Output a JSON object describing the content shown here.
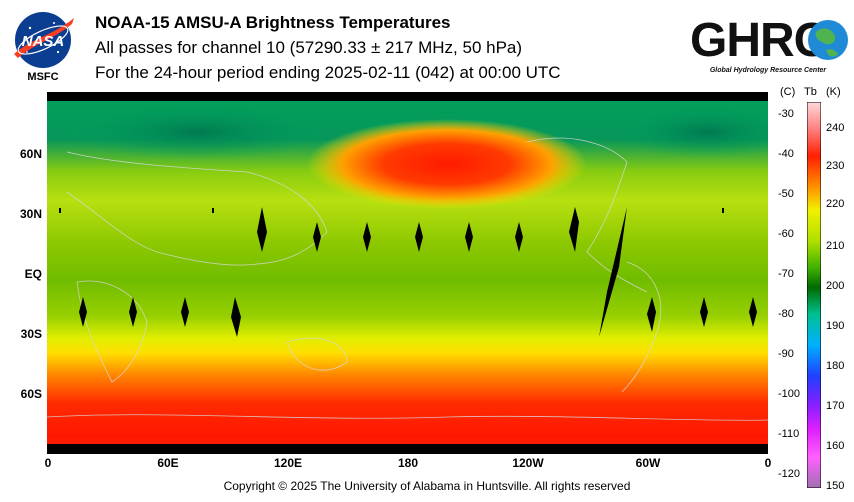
{
  "header": {
    "title": "NOAA-15 AMSU-A Brightness Temperatures",
    "subtitle": "All passes for channel 10 (57290.33 ± 217 MHz, 50 hPa)",
    "period": "For the 24-hour period ending 2025-02-11 (042) at 00:00 UTC"
  },
  "nasa_logo": {
    "text": "NASA",
    "caption": "MSFC"
  },
  "ghrc_logo": {
    "text": "GHRC",
    "caption": "Global Hydrology Resource Center"
  },
  "map": {
    "lat_labels": [
      "60N",
      "30N",
      "EQ",
      "30S",
      "60S"
    ],
    "lon_labels": [
      "0",
      "60E",
      "120E",
      "180",
      "120W",
      "60W",
      "0"
    ]
  },
  "colorbar": {
    "unit_c": "(C)",
    "unit_tb": "Tb",
    "unit_k": "(K)",
    "celsius_ticks": [
      "-30",
      "-40",
      "-50",
      "-60",
      "-70",
      "-80",
      "-90",
      "-100",
      "-110",
      "-120"
    ],
    "kelvin_ticks": [
      "240",
      "230",
      "220",
      "210",
      "200",
      "190",
      "180",
      "170",
      "160",
      "150"
    ],
    "colors": {
      "k150": "#c070c8",
      "k160": "#ff33ff",
      "k170": "#c018ff",
      "k180": "#3030ff",
      "k190": "#00b0ff",
      "k200": "#006a00",
      "k210": "#60c800",
      "k220": "#f0f000",
      "k230": "#ff2000",
      "k240": "#ffc0c0"
    }
  },
  "footer": {
    "copyright": "Copyright © 2025 The University of Alabama in Huntsville.  All rights reserved"
  }
}
